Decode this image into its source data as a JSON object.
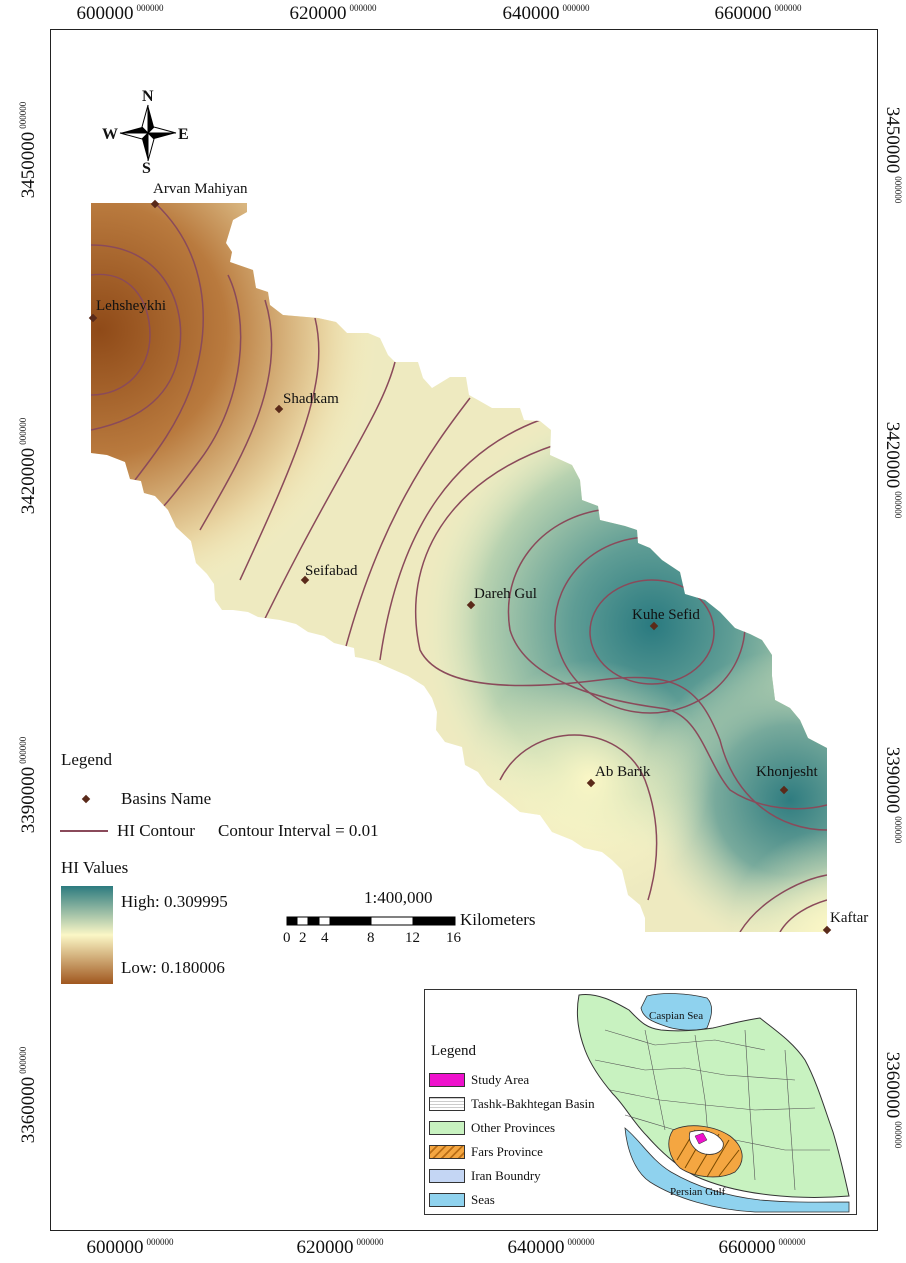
{
  "grid": {
    "top_labels": [
      {
        "main": "600000",
        "sup": "000000"
      },
      {
        "main": "620000",
        "sup": "000000"
      },
      {
        "main": "640000",
        "sup": "000000"
      },
      {
        "main": "660000",
        "sup": "000000"
      }
    ],
    "bottom_labels": [
      {
        "main": "600000",
        "sup": "000000"
      },
      {
        "main": "620000",
        "sup": "000000"
      },
      {
        "main": "640000",
        "sup": "000000"
      },
      {
        "main": "660000",
        "sup": "000000"
      }
    ],
    "left_labels": [
      {
        "main": "3450000",
        "sup": "000000"
      },
      {
        "main": "3420000",
        "sup": "000000"
      },
      {
        "main": "3390000",
        "sup": "000000"
      },
      {
        "main": "3360000",
        "sup": "000000"
      }
    ],
    "right_labels": [
      {
        "main": "3450000",
        "sup": "000000"
      },
      {
        "main": "3420000",
        "sup": "000000"
      },
      {
        "main": "3390000",
        "sup": "000000"
      },
      {
        "main": "3360000",
        "sup": "000000"
      }
    ]
  },
  "compass": {
    "n": "N",
    "s": "S",
    "e": "E",
    "w": "W"
  },
  "basins": [
    "Arvan Mahiyan",
    "Lehsheykhi",
    "Shadkam",
    "Seifabad",
    "Dareh Gul",
    "Kuhe Sefid",
    "Ab Barik",
    "Khonjesht",
    "Kaftar"
  ],
  "legend": {
    "title": "Legend",
    "basins_label": "Basins Name",
    "contour_label": "HI Contour",
    "contour_interval": "Contour Interval = 0.01",
    "hi_title": "HI Values",
    "high": "High: 0.309995",
    "low": "Low: 0.180006",
    "colors": {
      "high": "#2c7b7f",
      "mid": "#fbf7c6",
      "low": "#a0571f",
      "contour": "#8a4a5a",
      "point": "#5a2a1a"
    }
  },
  "scale": {
    "ratio": "1:400,000",
    "unit": "Kilometers",
    "ticks": [
      "0",
      "2",
      "4",
      "8",
      "12",
      "16"
    ]
  },
  "inset": {
    "legend_title": "Legend",
    "items": [
      {
        "label": "Study Area",
        "color": "#ee11cc"
      },
      {
        "label": "Tashk-Bakhtegan Basin",
        "color": "#ffffff"
      },
      {
        "label": "Other Provinces",
        "color": "#c8f2c0"
      },
      {
        "label": "Fars Province",
        "color": "#f4a641"
      },
      {
        "label": "Iran Boundry",
        "color": "#c4d6f4"
      },
      {
        "label": "Seas",
        "color": "#8fd2ee"
      }
    ],
    "caspian": "Caspian Sea",
    "gulf": "Persian Gulf"
  }
}
